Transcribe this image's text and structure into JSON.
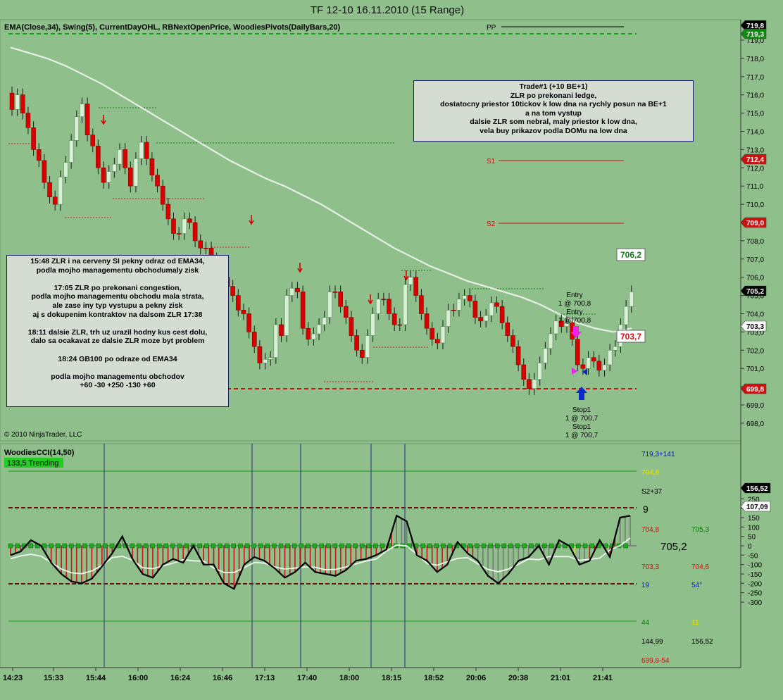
{
  "window_title": "TF 12-10  16.11.2010 (15 Range)",
  "indicators_label": "EMA(Close,34), Swing(5), CurrentDayOHL, RBNextOpenPrice, WoodiesPivots(DailyBars,20)",
  "copyright": "© 2010 NinjaTrader, LLC",
  "colors": {
    "background": "#8fbf8b",
    "bull": "#d8efd6",
    "bear": "#d80000",
    "ema": "#e8f0e6",
    "cci": "#000000",
    "turbo": "#f0f8f0"
  },
  "notes": {
    "trade1": "Trade#1 (+10 BE+1)\nZLR po prekonani ledge,\ndostatocny priestor 10tickov k low dna na rychly posun na BE+1\na na tom vystup\ndalsie ZLR som nebral, maly priestor k low dna,\nvela buy prikazov podla DOMu na low dna",
    "summary": "15:48 ZLR i na cerveny SI pekny odraz od EMA34,\npodla mojho managementu obchodumaly zisk\n\n17:05 ZLR po prekonani congestion,\npodla mojho managementu obchodu mala strata,\nale zase iny typ vystupu a pekny zisk\naj s dokupenim kontraktov na dalsom ZLR 17:38\n\n18:11 dalsie ZLR, trh uz urazil hodny kus cest dolu,\ndalo sa ocakavat ze dalsie ZLR moze byt problem\n\n18:24 GB100 po odraze od EMA34\n\npodla mojho managementu obchodov\n+60 -30 +250 -130 +60"
  },
  "pivots": {
    "pp": "PP",
    "s1": "S1",
    "s2": "S2"
  },
  "price_axis": {
    "ticks": [
      "719,0",
      "718,0",
      "717,0",
      "716,0",
      "715,0",
      "714,0",
      "713,0",
      "712,0",
      "711,0",
      "710,0",
      "709,0",
      "708,0",
      "707,0",
      "706,0",
      "705,0",
      "704,0",
      "703,0",
      "702,0",
      "701,0",
      "700,0",
      "699,0",
      "698,0"
    ],
    "badges": [
      {
        "text": "719,8",
        "bg": "#000000",
        "fg": "#ffffff"
      },
      {
        "text": "719,3",
        "bg": "#118811",
        "fg": "#ffffff"
      },
      {
        "text": "712,4",
        "bg": "#cc1111",
        "fg": "#ffffff"
      },
      {
        "text": "709,0",
        "bg": "#cc1111",
        "fg": "#ffffff"
      },
      {
        "text": "705,2",
        "bg": "#000000",
        "fg": "#ffffff"
      },
      {
        "text": "703,3",
        "bg": "#ffffff",
        "fg": "#000000"
      },
      {
        "text": "699,8",
        "bg": "#cc1111",
        "fg": "#ffffff"
      }
    ],
    "price_labels": {
      "high": "706,2",
      "low": "703,7"
    }
  },
  "orders": {
    "entry": "Entry",
    "entry_qty": "1 @ 700,8",
    "stop": "Stop1",
    "stop_qty": "1 @ 700,7"
  },
  "cci_panel": {
    "title": "WoodiesCCI(14,50)",
    "status": "133,5 Trending",
    "ticks": [
      "250",
      "200",
      "150",
      "100",
      "50",
      "0",
      "-50",
      "-100",
      "-150",
      "-200",
      "-250",
      "-300"
    ],
    "badges": [
      {
        "text": "156,52",
        "bg": "#000000",
        "fg": "#ffffff"
      },
      {
        "text": "107,09",
        "bg": "#ffffff",
        "fg": "#000000"
      }
    ],
    "info": {
      "r1": "719,3+141",
      "r2": "704,8",
      "s2": "S2+37",
      "nine": "9",
      "a1": "704,8",
      "a2": "705,3",
      "big": "705,2",
      "b1": "703,3",
      "b2": "704,6",
      "c1": "19",
      "c2": "54°",
      "d1": "44",
      "d2": "11",
      "e1": "144,99",
      "e2": "156,52",
      "f1": "699,8-54"
    }
  },
  "time_axis": [
    "14:23",
    "15:33",
    "15:44",
    "16:00",
    "16:24",
    "16:46",
    "17:13",
    "17:40",
    "18:00",
    "18:15",
    "18:52",
    "20:06",
    "20:38",
    "21:01",
    "21:41"
  ],
  "chart_data": {
    "type": "candlestick",
    "title": "TF 12-10  16.11.2010 (15 Range)",
    "x": [
      "14:23",
      "15:33",
      "15:44",
      "16:00",
      "16:24",
      "16:46",
      "17:13",
      "17:40",
      "18:00",
      "18:15",
      "18:52",
      "20:06",
      "20:38",
      "21:01",
      "21:41"
    ],
    "ylim": [
      697.6,
      720.0
    ],
    "close_by_bar": [
      715.2,
      716.0,
      715.0,
      714.2,
      713.0,
      712.4,
      711.2,
      710.4,
      710.0,
      711.5,
      712.3,
      713.5,
      714.8,
      715.5,
      713.8,
      713.2,
      712.0,
      711.2,
      711.8,
      712.2,
      713.0,
      712.0,
      711.0,
      712.5,
      713.4,
      712.5,
      711.6,
      711.0,
      710.0,
      709.2,
      708.4,
      708.4,
      709.2,
      709.0,
      708.0,
      707.6,
      707.6,
      707.0,
      706.2,
      706.0,
      705.5,
      705.0,
      704.2,
      704.0,
      703.0,
      702.2,
      701.3,
      701.5,
      701.6,
      703.4,
      702.8,
      705.0,
      705.4,
      705.2,
      703.2,
      702.6,
      702.9,
      703.4,
      703.8,
      705.2,
      705.2,
      704.4,
      703.8,
      702.8,
      702.0,
      701.6,
      702.8,
      704.0,
      704.8,
      704.8,
      704.0,
      703.4,
      703.4,
      705.6,
      706.0,
      705.0,
      704.0,
      703.2,
      702.6,
      702.4,
      703.3,
      704.2,
      704.2,
      704.8,
      705.0,
      704.7,
      703.8,
      703.6,
      703.9,
      704.6,
      704.4,
      703.5,
      702.8,
      702.2,
      701.2,
      700.4,
      699.9,
      700.4,
      701.3,
      702.1,
      702.9,
      703.6,
      703.3,
      703.5,
      702.6,
      701.2,
      701.0,
      701.6,
      701.4,
      700.9,
      701.2,
      702.0,
      702.2,
      703.4,
      704.4,
      705.2
    ],
    "ema34": [
      718.6,
      718.3,
      718.0,
      717.6,
      717.1,
      716.6,
      716.0,
      715.4,
      714.8,
      714.2,
      713.6,
      713.0,
      712.4,
      711.9,
      711.4,
      711.0,
      710.5,
      710.0,
      709.4,
      708.8,
      708.2,
      707.6,
      707.1,
      706.6,
      706.2,
      705.8,
      705.5,
      705.2,
      704.9,
      704.5,
      704.0,
      703.5,
      703.2,
      703.0,
      703.2
    ],
    "cci": [
      -50,
      -30,
      30,
      0,
      -90,
      -150,
      -190,
      -200,
      -175,
      -110,
      -40,
      50,
      -70,
      -150,
      -170,
      -100,
      -70,
      -90,
      0,
      -100,
      -100,
      -200,
      -230,
      -100,
      -60,
      -80,
      -120,
      -170,
      -140,
      -90,
      -140,
      -150,
      -160,
      -130,
      -80,
      -70,
      -50,
      -20,
      160,
      130,
      -50,
      -80,
      -140,
      -100,
      20,
      -40,
      -80,
      -160,
      -200,
      -150,
      -80,
      -60,
      0,
      -100,
      30,
      0,
      -100,
      -80,
      30,
      -60,
      150,
      160
    ],
    "series": [
      {
        "name": "EMA(Close,34)"
      },
      {
        "name": "WoodiesCCI(14,50)"
      }
    ]
  }
}
